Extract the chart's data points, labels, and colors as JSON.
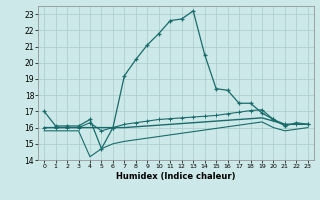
{
  "xlabel": "Humidex (Indice chaleur)",
  "bg_color": "#cce8e8",
  "grid_color": "#aacccc",
  "line_color": "#1a6b6b",
  "xlim": [
    -0.5,
    23.5
  ],
  "ylim": [
    14,
    23.5
  ],
  "xticks": [
    0,
    1,
    2,
    3,
    4,
    5,
    6,
    7,
    8,
    9,
    10,
    11,
    12,
    13,
    14,
    15,
    16,
    17,
    18,
    19,
    20,
    21,
    22,
    23
  ],
  "yticks": [
    14,
    15,
    16,
    17,
    18,
    19,
    20,
    21,
    22,
    23
  ],
  "line1_x": [
    0,
    1,
    2,
    3,
    4,
    5,
    6,
    7,
    8,
    9,
    10,
    11,
    12,
    13,
    14,
    15,
    16,
    17,
    18,
    19,
    20,
    21,
    22,
    23
  ],
  "line1_y": [
    17.0,
    16.1,
    16.1,
    16.1,
    16.5,
    14.7,
    16.0,
    19.2,
    20.2,
    21.1,
    21.8,
    22.6,
    22.7,
    23.2,
    20.5,
    18.4,
    18.3,
    17.5,
    17.5,
    16.9,
    16.5,
    16.1,
    16.3,
    16.2
  ],
  "line2_x": [
    0,
    1,
    2,
    3,
    4,
    5,
    6,
    7,
    8,
    9,
    10,
    11,
    12,
    13,
    14,
    15,
    16,
    17,
    18,
    19,
    20,
    21,
    22,
    23
  ],
  "line2_y": [
    16.0,
    16.0,
    16.0,
    16.0,
    16.3,
    15.8,
    16.0,
    16.2,
    16.3,
    16.4,
    16.5,
    16.55,
    16.6,
    16.65,
    16.7,
    16.75,
    16.85,
    16.95,
    17.05,
    17.1,
    16.5,
    16.2,
    16.2,
    16.2
  ],
  "line3_x": [
    0,
    1,
    2,
    3,
    4,
    5,
    6,
    7,
    8,
    9,
    10,
    11,
    12,
    13,
    14,
    15,
    16,
    17,
    18,
    19,
    20,
    21,
    22,
    23
  ],
  "line3_y": [
    16.0,
    16.0,
    16.0,
    16.0,
    16.0,
    16.0,
    16.0,
    16.0,
    16.05,
    16.1,
    16.15,
    16.2,
    16.25,
    16.3,
    16.35,
    16.4,
    16.45,
    16.5,
    16.55,
    16.6,
    16.4,
    16.2,
    16.2,
    16.2
  ],
  "line4_x": [
    0,
    1,
    2,
    3,
    4,
    5,
    6,
    7,
    8,
    9,
    10,
    11,
    12,
    13,
    14,
    15,
    16,
    17,
    18,
    19,
    20,
    21,
    22,
    23
  ],
  "line4_y": [
    15.8,
    15.8,
    15.8,
    15.8,
    14.2,
    14.7,
    15.0,
    15.15,
    15.25,
    15.35,
    15.45,
    15.55,
    15.65,
    15.75,
    15.85,
    15.95,
    16.05,
    16.15,
    16.25,
    16.35,
    16.0,
    15.8,
    15.9,
    16.0
  ]
}
